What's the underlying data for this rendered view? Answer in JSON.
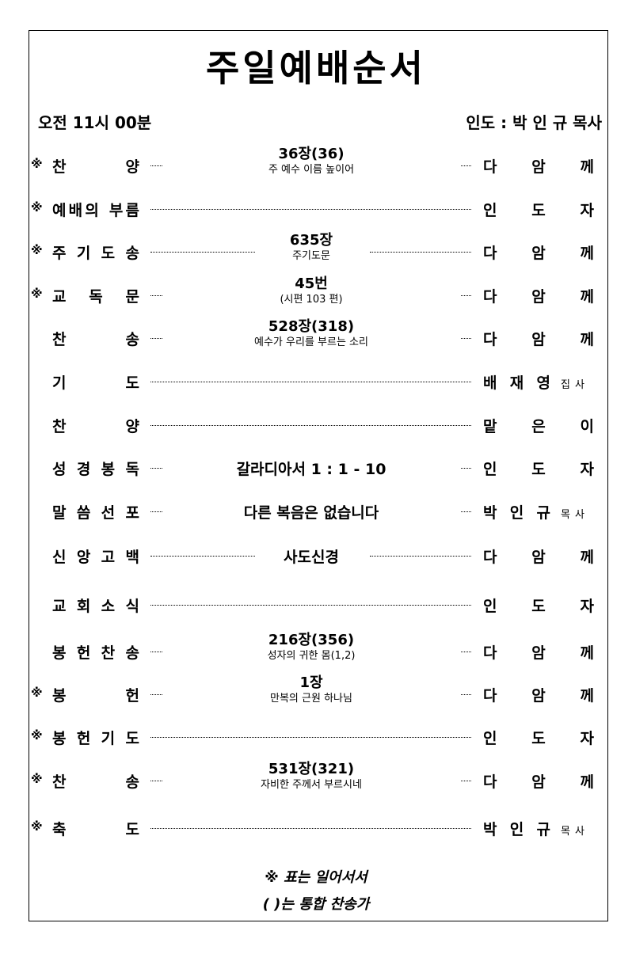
{
  "title": "주일예배순서",
  "header": {
    "time": "오전 11시 00분",
    "leader": "인도 : 박 인 규 목사"
  },
  "items": [
    {
      "star": true,
      "label": "찬 양",
      "line1": "36장(36)",
      "line2": "주 예수 이름 높이어",
      "who": "다암께"
    },
    {
      "star": true,
      "label": "예배의 부름",
      "who": "인도자"
    },
    {
      "star": true,
      "label": "주기도송",
      "line1": "635장",
      "line2": "주기도문",
      "who": "다암께"
    },
    {
      "star": true,
      "label": "교독문",
      "line1": "45번",
      "line2": "(시편 103 편)",
      "who": "다암께"
    },
    {
      "star": false,
      "label": "찬 송",
      "line1": "528장(318)",
      "line2": "예수가 우리를 부르는 소리",
      "who": "다암께"
    },
    {
      "star": false,
      "label": "기 도",
      "who": "배재영",
      "who_title": "집사"
    },
    {
      "star": false,
      "label": "찬 양",
      "who": "맡은이"
    },
    {
      "star": false,
      "label": "성경봉독",
      "center": "갈라디아서 1 : 1 - 10",
      "who": "인도자"
    },
    {
      "star": false,
      "label": "말씀선포",
      "center": "다른 복음은 없습니다",
      "who": "박인규",
      "who_title": "목사"
    },
    {
      "star": false,
      "label": "신앙고백",
      "center": "사도신경",
      "who": "다암께"
    },
    {
      "star": false,
      "label": "교회소식",
      "who": "인도자"
    },
    {
      "star": false,
      "label": "봉헌찬송",
      "line1": "216장(356)",
      "line2": "성자의 귀한 몸(1,2)",
      "who": "다암께"
    },
    {
      "star": true,
      "label": "봉 헌",
      "line1": "1장",
      "line2": "만복의 근원 하나님",
      "who": "다암께"
    },
    {
      "star": true,
      "label": "봉헌기도",
      "who": "인도자"
    },
    {
      "star": true,
      "label": "찬 송",
      "line1": "531장(321)",
      "line2": "자비한 주께서 부르시네",
      "who": "다암께"
    },
    {
      "star": true,
      "label": "축 도",
      "who": "박인규",
      "who_title": "목사"
    }
  ],
  "star_symbol": "※",
  "footer": {
    "note1": "※ 표는 일어서서",
    "note2": "( )는 통합 찬송가"
  }
}
